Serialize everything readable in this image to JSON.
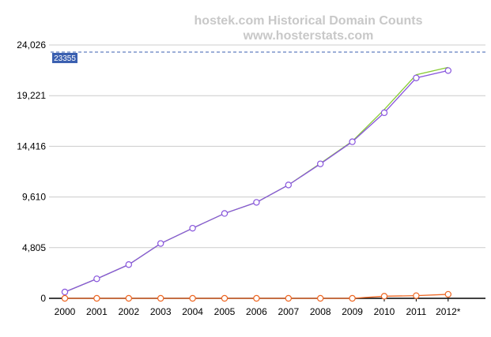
{
  "chart_data": {
    "type": "line",
    "title": "hostek.com Historical Domain Counts",
    "subtitle": "www.hosterstats.com",
    "categories": [
      "2000",
      "2001",
      "2002",
      "2003",
      "2004",
      "2005",
      "2006",
      "2007",
      "2008",
      "2009",
      "2010",
      "2011",
      "2012*"
    ],
    "y_ticks": [
      "0",
      "4,805",
      "9,610",
      "14,416",
      "19,221",
      "24,026"
    ],
    "ylim": [
      0,
      24026
    ],
    "grid": true,
    "reference_line": {
      "value": 23355,
      "label": "23355",
      "color": "#3a5fb0"
    },
    "series": [
      {
        "color": "#88cc33",
        "marker": "none",
        "values": [
          600,
          1850,
          3200,
          5200,
          6650,
          8050,
          9100,
          10750,
          12800,
          14900,
          17900,
          21200,
          21900
        ]
      },
      {
        "color": "#8855dd",
        "marker": "circle",
        "values": [
          600,
          1850,
          3200,
          5200,
          6650,
          8050,
          9100,
          10750,
          12750,
          14850,
          17600,
          20900,
          21600
        ]
      },
      {
        "color": "#ee6622",
        "marker": "circle",
        "values": [
          0,
          0,
          0,
          0,
          0,
          0,
          0,
          0,
          0,
          0,
          200,
          250,
          380
        ]
      }
    ]
  }
}
